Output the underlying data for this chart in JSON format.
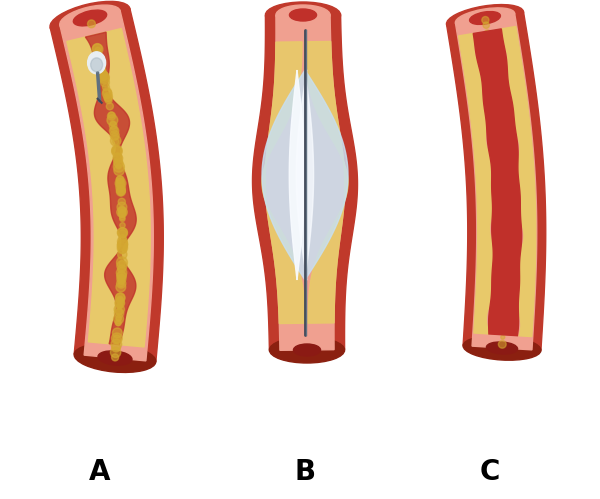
{
  "bg_color": "#ffffff",
  "label_A": "A",
  "label_B": "B",
  "label_C": "C",
  "label_fontsize": 20,
  "label_fontweight": "bold",
  "colors": {
    "artery_outer_red": "#c0392b",
    "artery_mid_red": "#d44e3e",
    "artery_inner_pink": "#f0a090",
    "artery_dark": "#8b2010",
    "plaque_yellow": "#e8c96a",
    "plaque_mid": "#d4a830",
    "plaque_dark": "#c09020",
    "plaque_light": "#f0d890",
    "blood_red": "#c0302a",
    "blood_dark": "#8b1a14",
    "balloon_blue": "#c8dff0",
    "balloon_light": "#e8f3fc",
    "balloon_white": "#f8fbff",
    "catheter_gray": "#607080",
    "catheter_dark": "#404858",
    "clot_white": "#e8eef2",
    "clot_gray": "#9aacb8",
    "shadow": "#d0d0d0"
  },
  "figsize": [
    6.0,
    4.99
  ],
  "dpi": 100
}
